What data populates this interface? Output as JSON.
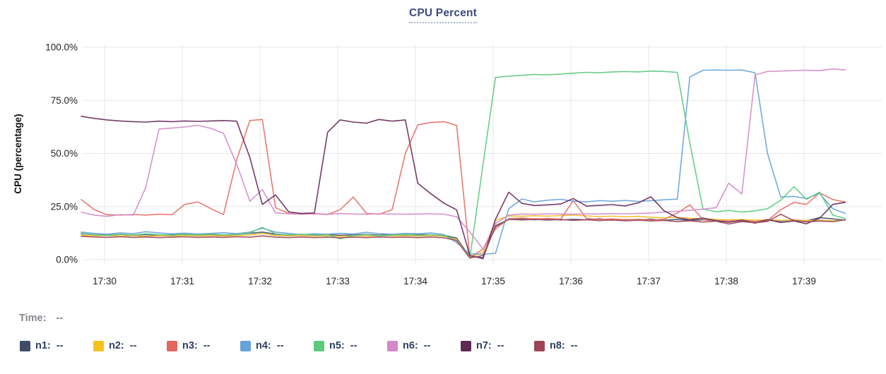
{
  "title": "CPU Percent",
  "tooltip": {
    "time_label": "Time:",
    "time_value": "--"
  },
  "legend": {
    "items": [
      {
        "id": "n1",
        "label": "n1:",
        "value": "--",
        "color": "#3e4c66"
      },
      {
        "id": "n2",
        "label": "n2:",
        "value": "--",
        "color": "#f6c21f"
      },
      {
        "id": "n3",
        "label": "n3:",
        "value": "--",
        "color": "#e2675e"
      },
      {
        "id": "n4",
        "label": "n4:",
        "value": "--",
        "color": "#66a3d9"
      },
      {
        "id": "n5",
        "label": "n5:",
        "value": "--",
        "color": "#5cc97d"
      },
      {
        "id": "n6",
        "label": "n6:",
        "value": "--",
        "color": "#d288c9"
      },
      {
        "id": "n7",
        "label": "n7:",
        "value": "--",
        "color": "#5e2a55"
      },
      {
        "id": "n8",
        "label": "n8:",
        "value": "--",
        "color": "#9d4456"
      }
    ]
  },
  "chart_data": {
    "type": "line",
    "title": "CPU Percent",
    "xlabel": "",
    "ylabel": "CPU (percentage)",
    "ylim": [
      0,
      100
    ],
    "grid": true,
    "legend_position": "bottom",
    "y_ticks": [
      "0.0%",
      "25.0%",
      "50.0%",
      "75.0%",
      "100.0%"
    ],
    "y_tick_values": [
      0,
      25,
      50,
      75,
      100
    ],
    "x_ticks": [
      "17:30",
      "17:31",
      "17:32",
      "17:33",
      "17:34",
      "17:35",
      "17:36",
      "17:37",
      "17:38",
      "17:39"
    ],
    "x_tick_minutes": [
      30,
      31,
      32,
      33,
      34,
      35,
      36,
      37,
      38,
      39
    ],
    "x_minutes": [
      29.7,
      29.87,
      30.03,
      30.2,
      30.37,
      30.53,
      30.7,
      30.87,
      31.03,
      31.2,
      31.37,
      31.53,
      31.7,
      31.87,
      32.03,
      32.2,
      32.37,
      32.53,
      32.7,
      32.87,
      33.03,
      33.2,
      33.37,
      33.53,
      33.7,
      33.87,
      34.03,
      34.2,
      34.37,
      34.53,
      34.7,
      34.87,
      35.03,
      35.2,
      35.37,
      35.53,
      35.7,
      35.87,
      36.03,
      36.2,
      36.37,
      36.53,
      36.7,
      36.87,
      37.03,
      37.2,
      37.37,
      37.53,
      37.7,
      37.87,
      38.03,
      38.2,
      38.37,
      38.53,
      38.7,
      38.87,
      39.03,
      39.2,
      39.37,
      39.53
    ],
    "series": [
      {
        "name": "n1",
        "color": "#46546e",
        "values": [
          12.2,
          11.8,
          11.6,
          11.9,
          11.6,
          11.8,
          11.5,
          11.7,
          11.9,
          11.6,
          11.8,
          11.6,
          11.9,
          12.4,
          13.0,
          12.0,
          11.7,
          11.9,
          11.6,
          11.8,
          11.5,
          11.7,
          11.9,
          11.6,
          11.8,
          11.6,
          11.9,
          11.7,
          11.4,
          10.2,
          1.4,
          1.0,
          16.0,
          18.9,
          19.2,
          18.8,
          19.1,
          18.7,
          19.0,
          18.8,
          19.2,
          18.6,
          18.9,
          18.7,
          19.1,
          18.6,
          18.9,
          18.5,
          18.8,
          18.3,
          17.8,
          18.4,
          18.0,
          18.6,
          18.2,
          18.8,
          18.3,
          19.8,
          19.2,
          18.6
        ]
      },
      {
        "name": "n2",
        "color": "#f0c02f",
        "values": [
          11.5,
          11.2,
          11.4,
          11.1,
          11.3,
          11.0,
          11.3,
          11.1,
          11.4,
          11.2,
          11.4,
          11.1,
          11.3,
          11.6,
          12.4,
          11.4,
          11.2,
          11.4,
          11.1,
          11.3,
          11.0,
          11.3,
          11.1,
          11.4,
          11.2,
          11.3,
          11.1,
          11.4,
          11.0,
          9.6,
          1.0,
          3.5,
          18.5,
          20.6,
          20.4,
          20.7,
          20.5,
          20.8,
          21.0,
          20.6,
          20.3,
          20.5,
          20.2,
          20.4,
          20.0,
          19.7,
          19.9,
          19.5,
          19.2,
          19.0,
          18.8,
          18.9,
          18.6,
          18.8,
          18.5,
          18.7,
          18.4,
          18.6,
          18.3,
          18.6
        ]
      },
      {
        "name": "n3",
        "color": "#e7746a",
        "values": [
          28.3,
          23.5,
          21.2,
          21.0,
          21.3,
          21.0,
          21.4,
          21.2,
          26.0,
          27.2,
          24.0,
          21.2,
          47.0,
          65.5,
          66.0,
          24.5,
          21.8,
          21.4,
          21.6,
          21.3,
          23.5,
          29.5,
          21.8,
          21.4,
          23.5,
          50.0,
          63.5,
          64.6,
          65.0,
          63.2,
          1.0,
          5.0,
          14.5,
          19.3,
          19.6,
          19.2,
          19.4,
          19.1,
          27.8,
          19.4,
          18.9,
          19.2,
          18.8,
          19.0,
          18.7,
          19.0,
          22.0,
          25.8,
          18.9,
          18.4,
          18.2,
          18.5,
          18.0,
          18.4,
          23.5,
          27.0,
          26.0,
          31.5,
          28.3,
          27.2
        ]
      },
      {
        "name": "n4",
        "color": "#6ba6db",
        "values": [
          13.0,
          12.4,
          12.0,
          12.6,
          12.3,
          13.2,
          12.6,
          12.2,
          12.5,
          12.1,
          12.4,
          12.7,
          12.3,
          13.0,
          14.8,
          13.0,
          12.4,
          11.8,
          12.2,
          12.0,
          12.4,
          12.1,
          12.9,
          12.3,
          12.0,
          12.4,
          12.2,
          12.6,
          11.8,
          8.0,
          2.8,
          2.5,
          3.0,
          24.0,
          28.6,
          27.2,
          28.0,
          28.4,
          27.6,
          27.2,
          27.8,
          27.5,
          27.9,
          27.4,
          27.8,
          28.2,
          28.5,
          86.0,
          89.2,
          89.3,
          89.2,
          89.3,
          88.0,
          50.0,
          29.5,
          29.8,
          28.8,
          31.2,
          24.0,
          21.8
        ]
      },
      {
        "name": "n5",
        "color": "#62ca83",
        "values": [
          12.4,
          11.8,
          11.4,
          12.0,
          11.6,
          12.2,
          11.8,
          11.5,
          12.0,
          11.6,
          12.1,
          11.7,
          12.0,
          12.6,
          15.2,
          12.2,
          11.6,
          12.0,
          11.5,
          11.8,
          9.8,
          11.4,
          11.8,
          11.2,
          11.6,
          11.9,
          11.5,
          11.8,
          11.3,
          9.0,
          0.8,
          45.0,
          85.8,
          86.4,
          86.8,
          87.2,
          87.0,
          87.4,
          87.8,
          88.2,
          88.0,
          88.4,
          88.6,
          88.4,
          88.8,
          88.6,
          88.2,
          55.0,
          23.8,
          22.6,
          23.2,
          22.4,
          23.0,
          24.0,
          28.0,
          34.4,
          28.4,
          31.8,
          21.0,
          19.3
        ]
      },
      {
        "name": "n6",
        "color": "#d58ecb",
        "values": [
          22.4,
          21.0,
          20.4,
          21.2,
          21.0,
          34.0,
          61.5,
          62.0,
          62.5,
          63.3,
          61.8,
          59.5,
          45.0,
          27.5,
          33.0,
          22.0,
          21.6,
          21.5,
          21.7,
          21.4,
          21.7,
          21.5,
          21.4,
          21.6,
          21.5,
          21.4,
          21.5,
          21.6,
          21.4,
          20.2,
          13.0,
          5.0,
          17.0,
          21.0,
          21.5,
          21.4,
          21.6,
          21.5,
          21.4,
          21.6,
          21.5,
          21.7,
          21.6,
          21.8,
          22.0,
          22.4,
          22.8,
          23.3,
          23.8,
          24.5,
          36.0,
          31.0,
          87.0,
          88.6,
          88.8,
          89.0,
          89.2,
          89.0,
          89.8,
          89.3
        ]
      },
      {
        "name": "n7",
        "color": "#6d3260",
        "values": [
          67.5,
          66.5,
          65.8,
          65.3,
          65.0,
          64.8,
          65.2,
          65.0,
          65.3,
          65.1,
          65.3,
          65.5,
          65.2,
          48.0,
          26.0,
          30.5,
          22.5,
          21.8,
          22.0,
          60.0,
          65.8,
          64.8,
          64.3,
          66.0,
          65.2,
          65.8,
          36.0,
          31.0,
          26.5,
          23.5,
          2.0,
          0.5,
          19.0,
          31.8,
          26.5,
          25.5,
          25.8,
          26.2,
          28.8,
          25.2,
          25.6,
          25.9,
          25.3,
          26.8,
          29.6,
          23.0,
          19.8,
          18.8,
          19.6,
          18.4,
          17.6,
          18.6,
          17.2,
          18.9,
          17.5,
          18.2,
          16.9,
          19.5,
          26.0,
          27.0
        ]
      },
      {
        "name": "n8",
        "color": "#a04b5d",
        "values": [
          11.0,
          10.7,
          10.5,
          10.8,
          10.5,
          10.7,
          10.4,
          10.6,
          10.8,
          10.5,
          10.7,
          10.5,
          10.8,
          10.6,
          11.2,
          10.6,
          10.4,
          10.7,
          10.4,
          10.6,
          10.3,
          10.6,
          10.4,
          10.7,
          10.5,
          10.6,
          10.4,
          10.7,
          10.3,
          9.0,
          0.8,
          2.0,
          15.5,
          19.0,
          18.7,
          19.0,
          18.6,
          18.9,
          18.5,
          18.8,
          18.4,
          18.7,
          18.3,
          18.6,
          18.2,
          18.5,
          17.9,
          18.3,
          17.7,
          18.1,
          16.8,
          17.9,
          17.4,
          18.0,
          21.4,
          18.4,
          17.8,
          18.2,
          17.9,
          18.8
        ]
      }
    ]
  }
}
